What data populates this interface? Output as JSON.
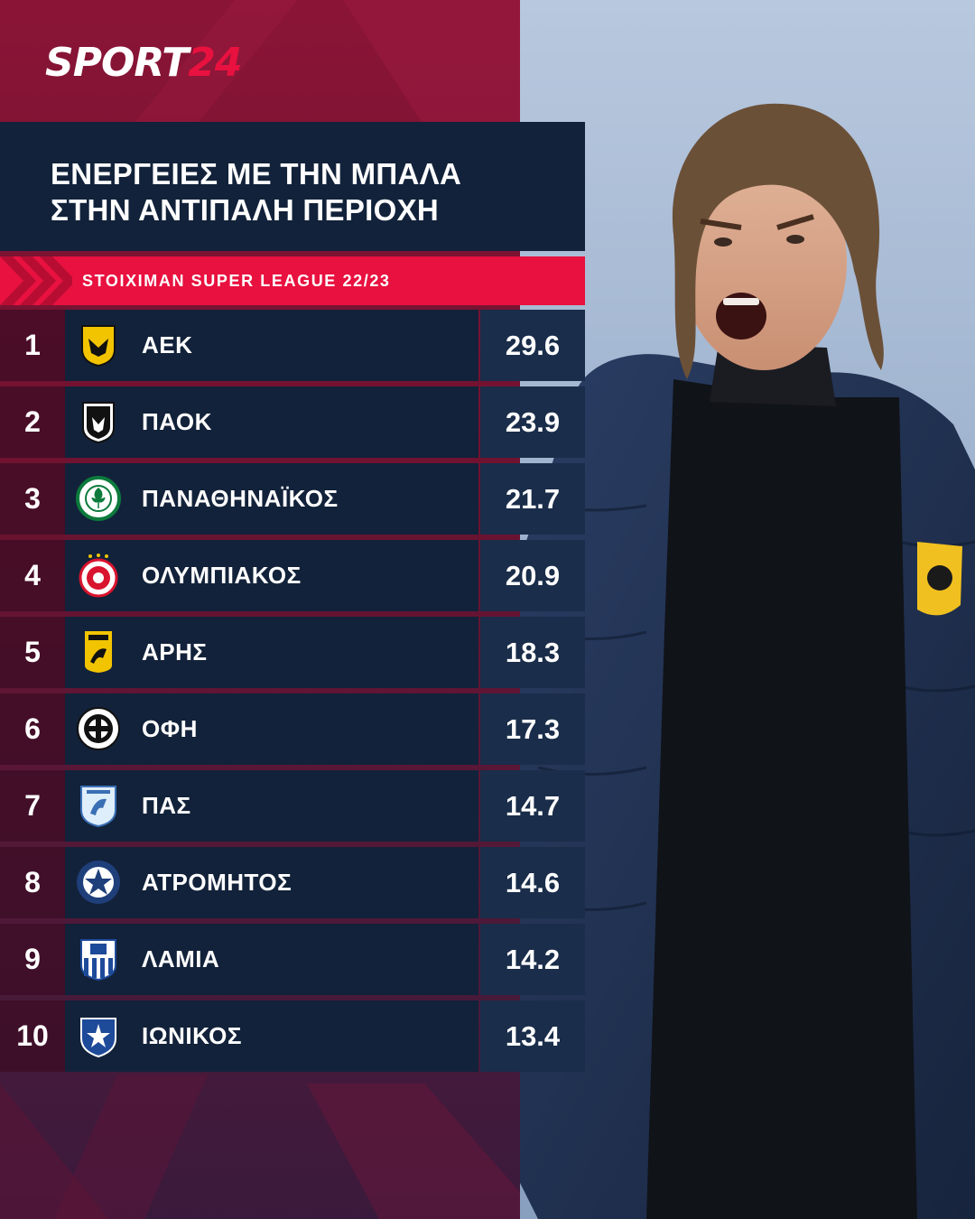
{
  "brand": {
    "part1": "SPORT",
    "part2": "24"
  },
  "title": {
    "line1": "ΕΝΕΡΓΕΙΕΣ ΜΕ ΤΗΝ ΜΠΑΛΑ",
    "line2": "ΣΤΗΝ ΑΝΤΙΠΑΛΗ ΠΕΡΙΟΧΗ"
  },
  "league": "STOIXIMAN SUPER LEAGUE 22/23",
  "rows": [
    {
      "rank": "1",
      "team": "ΑΕΚ",
      "value": "29.6",
      "crest_icon": "aek-crest-icon"
    },
    {
      "rank": "2",
      "team": "ΠΑΟΚ",
      "value": "23.9",
      "crest_icon": "paok-crest-icon"
    },
    {
      "rank": "3",
      "team": "ΠΑΝΑΘΗΝΑΪΚΟΣ",
      "value": "21.7",
      "crest_icon": "panathinaikos-crest-icon"
    },
    {
      "rank": "4",
      "team": "ΟΛΥΜΠΙΑΚΟΣ",
      "value": "20.9",
      "crest_icon": "olympiakos-crest-icon"
    },
    {
      "rank": "5",
      "team": "ΑΡΗΣ",
      "value": "18.3",
      "crest_icon": "aris-crest-icon"
    },
    {
      "rank": "6",
      "team": "ΟΦΗ",
      "value": "17.3",
      "crest_icon": "ofi-crest-icon"
    },
    {
      "rank": "7",
      "team": "ΠΑΣ",
      "value": "14.7",
      "crest_icon": "pas-crest-icon"
    },
    {
      "rank": "8",
      "team": "ΑΤΡΟΜΗΤΟΣ",
      "value": "14.6",
      "crest_icon": "atromitos-crest-icon"
    },
    {
      "rank": "9",
      "team": "ΛΑΜΙΑ",
      "value": "14.2",
      "crest_icon": "lamia-crest-icon"
    },
    {
      "rank": "10",
      "team": "ΙΩΝΙΚΟΣ",
      "value": "13.4",
      "crest_icon": "ionikos-crest-icon"
    }
  ],
  "colors": {
    "accent": "#e8113f",
    "panel": "#12223a",
    "value_panel": "#1a2d4a",
    "background": "#7d1534"
  }
}
